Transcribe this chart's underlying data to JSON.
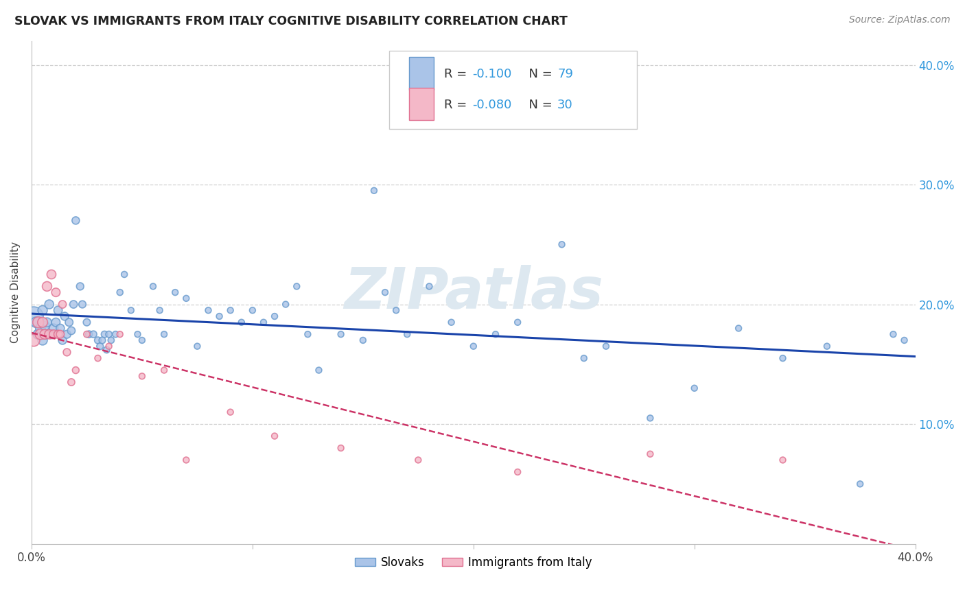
{
  "title": "SLOVAK VS IMMIGRANTS FROM ITALY COGNITIVE DISABILITY CORRELATION CHART",
  "source": "Source: ZipAtlas.com",
  "ylabel": "Cognitive Disability",
  "xlim": [
    0.0,
    0.4
  ],
  "ylim": [
    0.0,
    0.42
  ],
  "yticks": [
    0.1,
    0.2,
    0.3,
    0.4
  ],
  "ytick_labels": [
    "10.0%",
    "20.0%",
    "30.0%",
    "40.0%"
  ],
  "xtick_labels": [
    "0.0%",
    "40.0%"
  ],
  "grid_color": "#d0d0d0",
  "background_color": "#ffffff",
  "slovaks": {
    "color": "#aac4e8",
    "edge_color": "#6699cc",
    "line_color": "#1a44aa",
    "label": "Slovaks",
    "x": [
      0.001,
      0.002,
      0.003,
      0.004,
      0.005,
      0.005,
      0.006,
      0.006,
      0.007,
      0.008,
      0.009,
      0.01,
      0.011,
      0.012,
      0.013,
      0.014,
      0.015,
      0.016,
      0.017,
      0.018,
      0.019,
      0.02,
      0.022,
      0.023,
      0.025,
      0.026,
      0.028,
      0.03,
      0.031,
      0.032,
      0.033,
      0.034,
      0.035,
      0.036,
      0.038,
      0.04,
      0.042,
      0.045,
      0.048,
      0.05,
      0.055,
      0.058,
      0.06,
      0.065,
      0.07,
      0.075,
      0.08,
      0.085,
      0.09,
      0.095,
      0.1,
      0.105,
      0.11,
      0.115,
      0.12,
      0.125,
      0.13,
      0.14,
      0.15,
      0.155,
      0.16,
      0.165,
      0.17,
      0.18,
      0.19,
      0.2,
      0.21,
      0.22,
      0.24,
      0.25,
      0.26,
      0.28,
      0.3,
      0.32,
      0.34,
      0.36,
      0.375,
      0.39,
      0.395
    ],
    "y": [
      0.19,
      0.185,
      0.175,
      0.18,
      0.17,
      0.195,
      0.175,
      0.182,
      0.185,
      0.2,
      0.175,
      0.18,
      0.185,
      0.195,
      0.18,
      0.17,
      0.19,
      0.175,
      0.185,
      0.178,
      0.2,
      0.27,
      0.215,
      0.2,
      0.185,
      0.175,
      0.175,
      0.17,
      0.165,
      0.17,
      0.175,
      0.162,
      0.175,
      0.17,
      0.175,
      0.21,
      0.225,
      0.195,
      0.175,
      0.17,
      0.215,
      0.195,
      0.175,
      0.21,
      0.205,
      0.165,
      0.195,
      0.19,
      0.195,
      0.185,
      0.195,
      0.185,
      0.19,
      0.2,
      0.215,
      0.175,
      0.145,
      0.175,
      0.17,
      0.295,
      0.21,
      0.195,
      0.175,
      0.215,
      0.185,
      0.165,
      0.175,
      0.185,
      0.25,
      0.155,
      0.165,
      0.105,
      0.13,
      0.18,
      0.155,
      0.165,
      0.05,
      0.175,
      0.17
    ],
    "sizes": [
      400,
      120,
      110,
      105,
      100,
      98,
      95,
      93,
      90,
      88,
      85,
      83,
      80,
      78,
      76,
      74,
      72,
      70,
      68,
      66,
      64,
      62,
      60,
      58,
      56,
      54,
      52,
      50,
      49,
      48,
      47,
      46,
      45,
      44,
      43,
      42,
      41,
      40,
      40,
      40,
      40,
      40,
      40,
      40,
      40,
      40,
      40,
      40,
      40,
      40,
      40,
      40,
      40,
      40,
      40,
      40,
      40,
      40,
      40,
      40,
      40,
      40,
      40,
      40,
      40,
      40,
      40,
      40,
      40,
      40,
      40,
      40,
      40,
      40,
      40,
      40,
      40,
      40,
      40
    ]
  },
  "italy": {
    "color": "#f4b8c8",
    "edge_color": "#e07090",
    "line_color": "#cc3366",
    "label": "Immigrants from Italy",
    "x": [
      0.001,
      0.003,
      0.004,
      0.005,
      0.006,
      0.007,
      0.008,
      0.009,
      0.01,
      0.011,
      0.012,
      0.013,
      0.014,
      0.016,
      0.018,
      0.02,
      0.025,
      0.03,
      0.035,
      0.04,
      0.05,
      0.06,
      0.07,
      0.09,
      0.11,
      0.14,
      0.175,
      0.22,
      0.28,
      0.34
    ],
    "y": [
      0.17,
      0.185,
      0.175,
      0.185,
      0.175,
      0.215,
      0.175,
      0.225,
      0.175,
      0.21,
      0.175,
      0.175,
      0.2,
      0.16,
      0.135,
      0.145,
      0.175,
      0.155,
      0.165,
      0.175,
      0.14,
      0.145,
      0.07,
      0.11,
      0.09,
      0.08,
      0.07,
      0.06,
      0.075,
      0.07
    ],
    "sizes": [
      160,
      130,
      120,
      110,
      105,
      100,
      95,
      90,
      85,
      80,
      75,
      70,
      65,
      60,
      55,
      50,
      45,
      42,
      40,
      40,
      40,
      40,
      40,
      40,
      40,
      40,
      40,
      40,
      40,
      40
    ]
  },
  "watermark": "ZIPatlas",
  "watermark_color": "#dde8f0",
  "legend_color": "#3399dd"
}
